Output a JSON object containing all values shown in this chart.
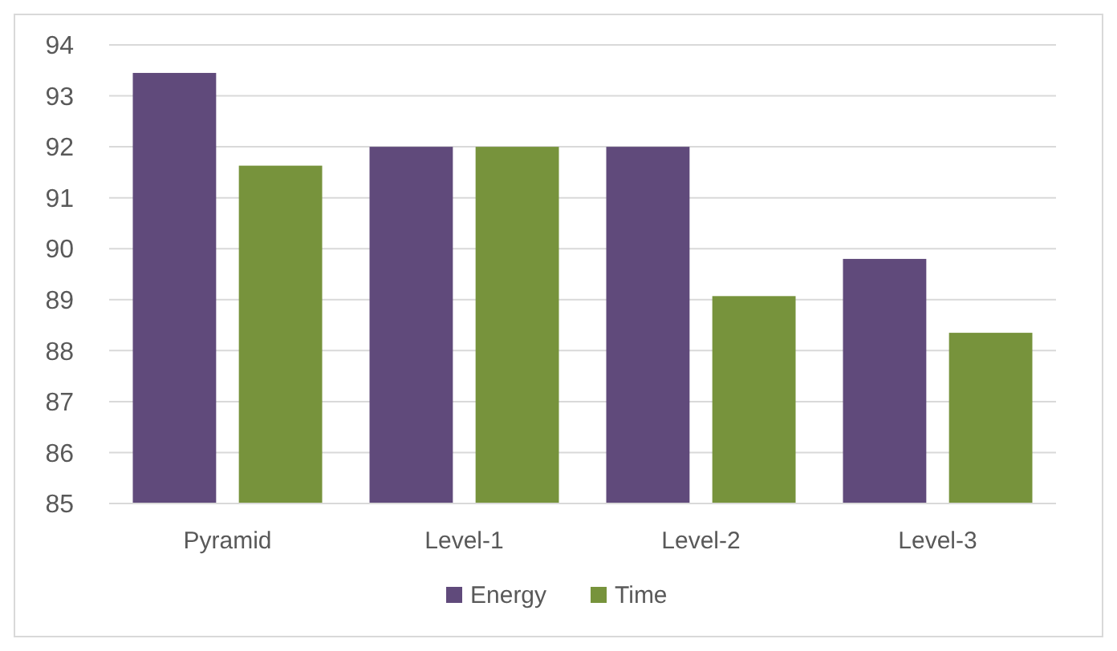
{
  "chart_data": {
    "type": "bar",
    "categories": [
      "Pyramid",
      "Level-1",
      "Level-2",
      "Level-3"
    ],
    "series": [
      {
        "name": "Energy",
        "color": "#604a7b",
        "values": [
          93.45,
          92,
          92,
          89.8
        ]
      },
      {
        "name": "Time",
        "color": "#77933c",
        "values": [
          91.63,
          92,
          89.07,
          88.35
        ]
      }
    ],
    "ylim": [
      85,
      94
    ],
    "yticks": [
      85,
      86,
      87,
      88,
      89,
      90,
      91,
      92,
      93,
      94
    ],
    "grid": "y",
    "legend": "bottom"
  }
}
